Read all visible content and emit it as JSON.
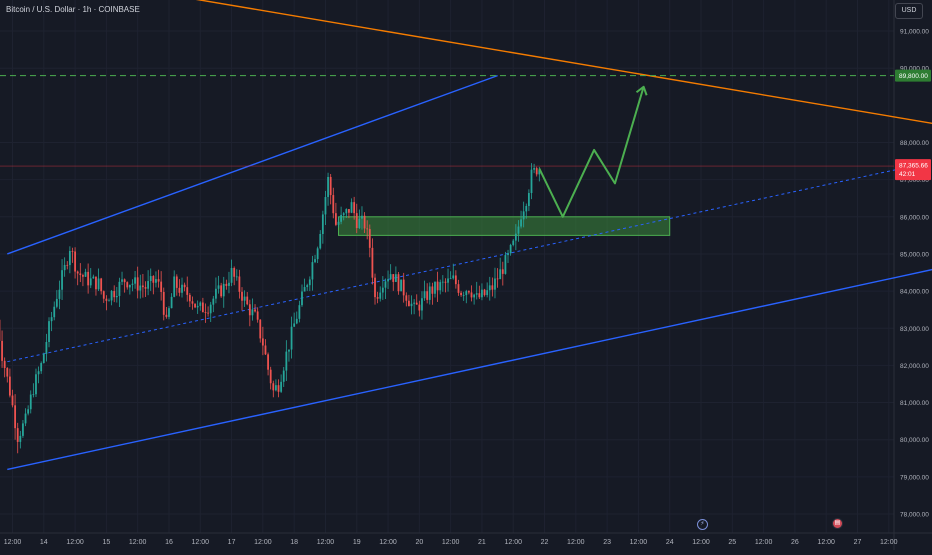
{
  "header": {
    "symbol_title": "Bitcoin / U.S. Dollar · 1h · COINBASE"
  },
  "scale": {
    "currency_label": "USD"
  },
  "events": {
    "flash_icon": "lightning-icon",
    "calendar_icon": "calendar-event-icon"
  },
  "colors": {
    "background": "#161a25",
    "grid": "#1e2230",
    "axis_text": "#b2b5be",
    "candle_up": "#26a69a",
    "candle_down": "#ef5350",
    "channel": "#2962ff",
    "trendline": "#f57c00",
    "target_line": "#4caf50",
    "zone_fill": "#3d8b3d",
    "arrow": "#4caf50",
    "price_badge": "#f23645",
    "target_badge": "#2e7d32"
  },
  "chart_data": {
    "type": "candlestick",
    "symbol": "Bitcoin / U.S. Dollar",
    "interval": "1h",
    "exchange": "COINBASE",
    "x_tick_labels": [
      "12:00",
      "14",
      "12:00",
      "15",
      "12:00",
      "16",
      "12:00",
      "17",
      "12:00",
      "18",
      "12:00",
      "19",
      "12:00",
      "20",
      "12:00",
      "21",
      "12:00",
      "22",
      "12:00",
      "23",
      "12:00",
      "24",
      "12:00",
      "25",
      "12:00",
      "26",
      "12:00",
      "27",
      "12:00"
    ],
    "x_ticks_hours_from_mar13": [
      12,
      24,
      36,
      48,
      60,
      72,
      84,
      96,
      108,
      120,
      132,
      144,
      156,
      168,
      180,
      192,
      204,
      216,
      228,
      240,
      252,
      264,
      276,
      288,
      300,
      312,
      324,
      336,
      348
    ],
    "y_tick_labels": [
      "91,000.00",
      "90,000.00",
      "88,000.00",
      "87,000.00",
      "86,000.00",
      "85,000.00",
      "84,000.00",
      "83,000.00",
      "82,000.00",
      "81,000.00",
      "80,000.00",
      "79,000.00",
      "78,000.00"
    ],
    "y_ticks": [
      91000,
      90000,
      88000,
      87000,
      86000,
      85000,
      84000,
      83000,
      82000,
      81000,
      80000,
      79000,
      78000
    ],
    "ylim": [
      77300,
      92000
    ],
    "current_price": {
      "label": "87,365.66",
      "value": 87365.66,
      "countdown": "42:01"
    },
    "target_price": {
      "label": "89,800.00",
      "value": 89800
    },
    "price_path": [
      [
        6,
        83700
      ],
      [
        9,
        82300
      ],
      [
        12,
        81300
      ],
      [
        15,
        80100
      ],
      [
        18,
        80500
      ],
      [
        21,
        81400
      ],
      [
        24,
        82000
      ],
      [
        27,
        83000
      ],
      [
        30,
        83900
      ],
      [
        33,
        84600
      ],
      [
        35,
        85200
      ],
      [
        38,
        84500
      ],
      [
        42,
        84300
      ],
      [
        46,
        84200
      ],
      [
        48,
        83800
      ],
      [
        52,
        84000
      ],
      [
        56,
        84300
      ],
      [
        60,
        84200
      ],
      [
        64,
        84100
      ],
      [
        68,
        84300
      ],
      [
        70,
        84000
      ],
      [
        72,
        83100
      ],
      [
        75,
        84200
      ],
      [
        78,
        84000
      ],
      [
        81,
        83900
      ],
      [
        84,
        83500
      ],
      [
        88,
        83600
      ],
      [
        91,
        83900
      ],
      [
        94,
        84100
      ],
      [
        97,
        84500
      ],
      [
        99,
        84200
      ],
      [
        103,
        83600
      ],
      [
        106,
        83300
      ],
      [
        109,
        82600
      ],
      [
        111,
        81900
      ],
      [
        113,
        81300
      ],
      [
        115,
        81500
      ],
      [
        118,
        82300
      ],
      [
        121,
        83100
      ],
      [
        124,
        83800
      ],
      [
        127,
        84500
      ],
      [
        130,
        85300
      ],
      [
        132,
        86100
      ],
      [
        134,
        87000
      ],
      [
        137,
        85800
      ],
      [
        140,
        86000
      ],
      [
        143,
        86300
      ],
      [
        145,
        85900
      ],
      [
        148,
        85800
      ],
      [
        150,
        85200
      ],
      [
        152,
        83800
      ],
      [
        155,
        84300
      ],
      [
        158,
        84500
      ],
      [
        161,
        84200
      ],
      [
        164,
        83900
      ],
      [
        167,
        83500
      ],
      [
        170,
        83700
      ],
      [
        173,
        84000
      ],
      [
        176,
        84100
      ],
      [
        179,
        84200
      ],
      [
        182,
        84300
      ],
      [
        185,
        84000
      ],
      [
        188,
        84100
      ],
      [
        191,
        83800
      ],
      [
        194,
        83900
      ],
      [
        197,
        84100
      ],
      [
        200,
        84500
      ],
      [
        203,
        84900
      ],
      [
        206,
        85400
      ],
      [
        208,
        86100
      ],
      [
        210,
        86500
      ],
      [
        212,
        87100
      ],
      [
        214,
        87300
      ]
    ],
    "channel": {
      "upper": [
        [
          10,
          85000
        ],
        [
          198,
          89800
        ]
      ],
      "lower": [
        [
          10,
          79200
        ],
        [
          366,
          84600
        ]
      ],
      "median": [
        [
          10,
          82100
        ],
        [
          366,
          87500
        ]
      ]
    },
    "trendline": [
      [
        70,
        92000
      ],
      [
        366,
        88500
      ]
    ],
    "support_zone": {
      "from": [
        137,
        86000
      ],
      "to": [
        264,
        85500
      ]
    },
    "projection_path": [
      [
        214,
        87300
      ],
      [
        223,
        86000
      ],
      [
        235,
        87800
      ],
      [
        243,
        86900
      ],
      [
        254,
        89500
      ]
    ],
    "horizontal_line": 89800
  }
}
